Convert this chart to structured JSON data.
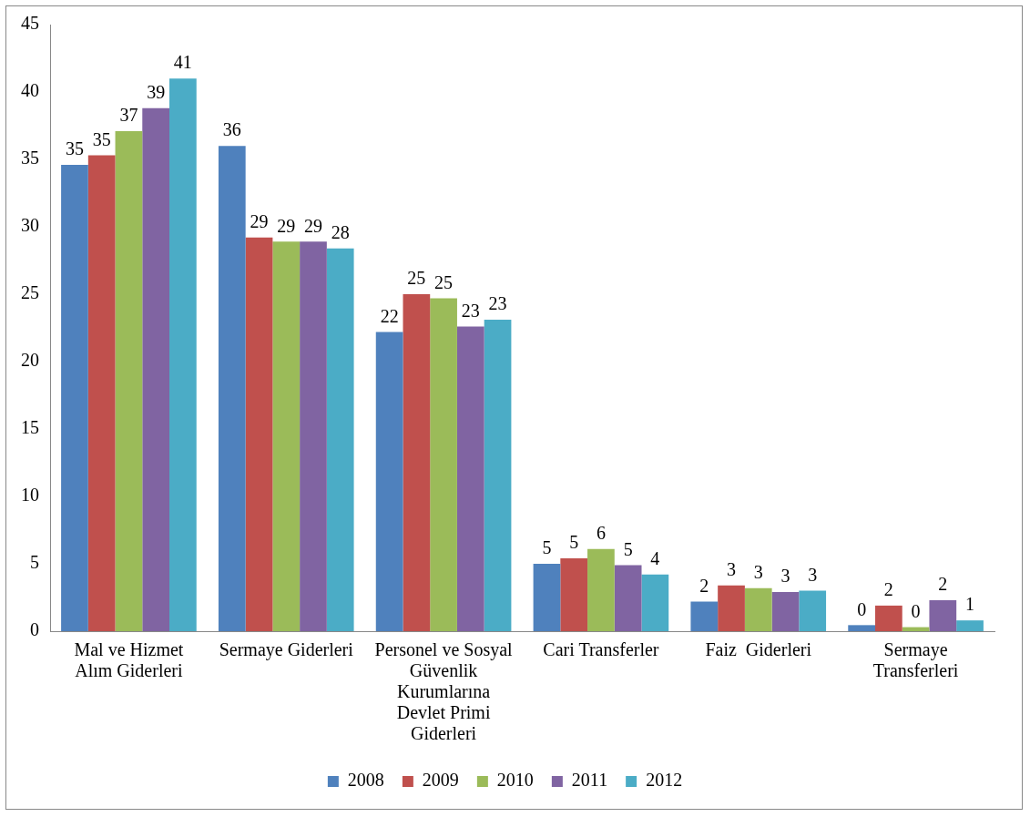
{
  "chart_data": {
    "type": "bar",
    "categories": [
      "Mal ve Hizmet Alım Giderleri",
      "Sermaye Giderleri",
      "Personel ve Sosyal Güvenlik Kurumlarına Devlet Primi Giderleri",
      "Cari Transferler",
      "Faiz  Giderleri",
      "Sermaye Transferleri"
    ],
    "series": [
      {
        "name": "2008",
        "color": "#4f81bd",
        "values": [
          34.6,
          36.0,
          22.2,
          5.0,
          2.2,
          0.45
        ],
        "value_labels": [
          "35",
          "36",
          "22",
          "5",
          "2",
          "0"
        ]
      },
      {
        "name": "2009",
        "color": "#c0504d",
        "values": [
          35.3,
          29.2,
          25.0,
          5.4,
          3.4,
          1.9
        ],
        "value_labels": [
          "35",
          "29",
          "25",
          "5",
          "3",
          "2"
        ]
      },
      {
        "name": "2010",
        "color": "#9bbb59",
        "values": [
          37.1,
          28.9,
          24.7,
          6.1,
          3.2,
          0.3
        ],
        "value_labels": [
          "37",
          "29",
          "25",
          "6",
          "3",
          "0"
        ]
      },
      {
        "name": "2011",
        "color": "#8064a2",
        "values": [
          38.8,
          28.9,
          22.6,
          4.9,
          2.9,
          2.3
        ],
        "value_labels": [
          "39",
          "29",
          "23",
          "5",
          "3",
          "2"
        ]
      },
      {
        "name": "2012",
        "color": "#4bacc6",
        "values": [
          41.0,
          28.4,
          23.1,
          4.2,
          3.0,
          0.8
        ],
        "value_labels": [
          "41",
          "28",
          "23",
          "4",
          "3",
          "1"
        ]
      }
    ],
    "ylim": [
      0,
      45
    ],
    "yticks": [
      0,
      5,
      10,
      15,
      20,
      25,
      30,
      35,
      40,
      45
    ],
    "grid": false,
    "legend": "bottom"
  }
}
